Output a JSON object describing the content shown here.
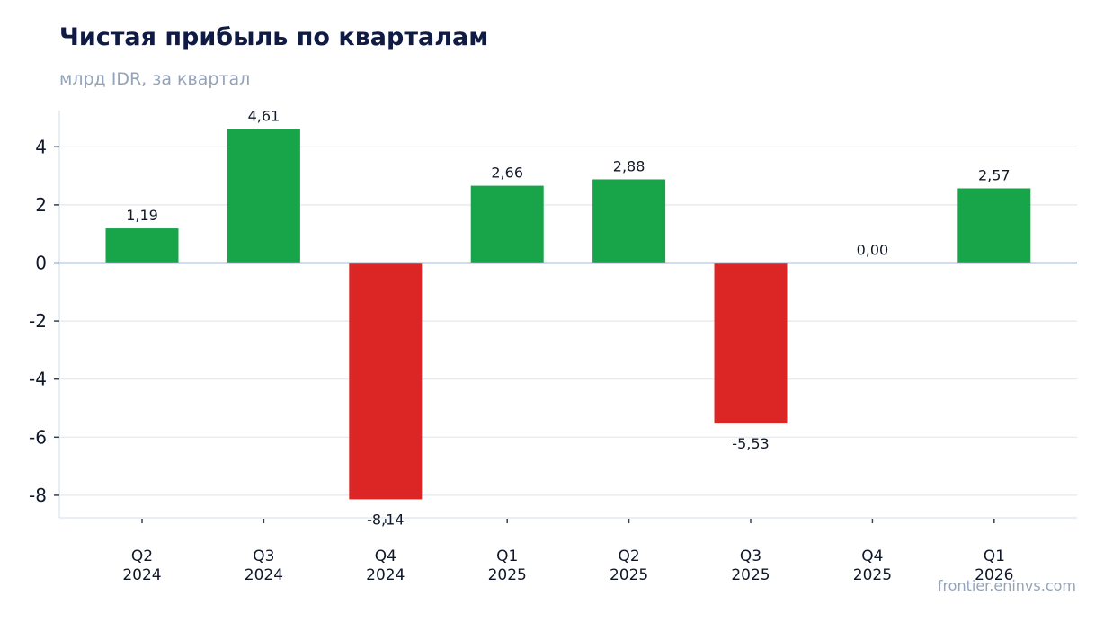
{
  "title": "Чистая прибыль по кварталам",
  "subtitle": "млрд IDR, за квартал",
  "watermark": "frontier.eninvs.com",
  "colors": {
    "positive": "#18a54a",
    "negative": "#dc2626",
    "grid": "#e5e7eb",
    "zero_line": "#94a3b8",
    "axis": "#e2e8f0",
    "title": "#0f1b44",
    "muted": "#94a3b8"
  },
  "chart_data": {
    "type": "bar",
    "title": "Чистая прибыль по кварталам",
    "subtitle": "млрд IDR, за квартал",
    "categories": [
      [
        "Q2",
        "2024"
      ],
      [
        "Q3",
        "2024"
      ],
      [
        "Q4",
        "2024"
      ],
      [
        "Q1",
        "2025"
      ],
      [
        "Q2",
        "2025"
      ],
      [
        "Q3",
        "2025"
      ],
      [
        "Q4",
        "2025"
      ],
      [
        "Q1",
        "2026"
      ]
    ],
    "values": [
      1.19,
      4.61,
      -8.14,
      2.66,
      2.88,
      -5.53,
      0.0,
      2.57
    ],
    "data_labels": [
      "1,19",
      "4,61",
      "-8,14",
      "2,66",
      "2,88",
      "-5,53",
      "0,00",
      "2,57"
    ],
    "y_ticks": [
      -8,
      -6,
      -4,
      -2,
      0,
      2,
      4
    ],
    "y_tick_labels": [
      "-8",
      "-6",
      "-4",
      "-2",
      "0",
      "2",
      "4"
    ],
    "ylim": [
      -8.75,
      5.2
    ],
    "grid": true,
    "legend": "none"
  }
}
